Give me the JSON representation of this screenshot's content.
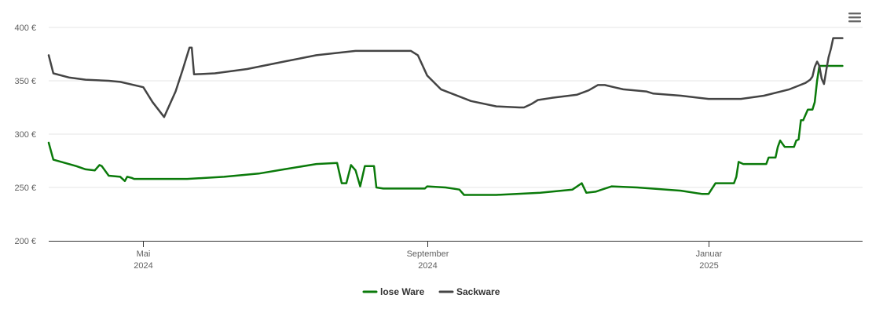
{
  "chart_data": {
    "type": "line",
    "title": "",
    "xlabel": "",
    "ylabel": "",
    "ylim": [
      200,
      400
    ],
    "y_ticks": [
      {
        "value": 200,
        "label": "200 €"
      },
      {
        "value": 250,
        "label": "250 €"
      },
      {
        "value": 300,
        "label": "300 €"
      },
      {
        "value": 350,
        "label": "350 €"
      },
      {
        "value": 400,
        "label": "400 €"
      }
    ],
    "xlim": [
      "2024-03-21",
      "2025-02-18"
    ],
    "x_ticks": [
      {
        "date": "2024-05-01",
        "month": "Mai",
        "year": "2024"
      },
      {
        "date": "2024-09-01",
        "month": "September",
        "year": "2024"
      },
      {
        "date": "2025-01-01",
        "month": "Januar",
        "year": "2025"
      }
    ],
    "grid": true,
    "legend_position": "bottom-center",
    "series": [
      {
        "name": "lose Ware",
        "color": "#0a7a0a",
        "points": [
          [
            "2024-03-21",
            292
          ],
          [
            "2024-03-23",
            276
          ],
          [
            "2024-03-28",
            273
          ],
          [
            "2024-04-02",
            270
          ],
          [
            "2024-04-06",
            267
          ],
          [
            "2024-04-10",
            266
          ],
          [
            "2024-04-12",
            271
          ],
          [
            "2024-04-13",
            270
          ],
          [
            "2024-04-16",
            261
          ],
          [
            "2024-04-21",
            260
          ],
          [
            "2024-04-23",
            256
          ],
          [
            "2024-04-24",
            260
          ],
          [
            "2024-04-26",
            259
          ],
          [
            "2024-04-27",
            258
          ],
          [
            "2024-05-20",
            258
          ],
          [
            "2024-06-05",
            260
          ],
          [
            "2024-06-20",
            263
          ],
          [
            "2024-07-01",
            267
          ],
          [
            "2024-07-15",
            272
          ],
          [
            "2024-07-24",
            273
          ],
          [
            "2024-07-26",
            254
          ],
          [
            "2024-07-28",
            254
          ],
          [
            "2024-07-30",
            271
          ],
          [
            "2024-08-01",
            266
          ],
          [
            "2024-08-03",
            251
          ],
          [
            "2024-08-05",
            270
          ],
          [
            "2024-08-09",
            270
          ],
          [
            "2024-08-10",
            250
          ],
          [
            "2024-08-13",
            249
          ],
          [
            "2024-08-31",
            249
          ],
          [
            "2024-09-01",
            251
          ],
          [
            "2024-09-09",
            250
          ],
          [
            "2024-09-15",
            248
          ],
          [
            "2024-09-17",
            243
          ],
          [
            "2024-10-01",
            243
          ],
          [
            "2024-10-20",
            245
          ],
          [
            "2024-11-03",
            248
          ],
          [
            "2024-11-07",
            254
          ],
          [
            "2024-11-09",
            245
          ],
          [
            "2024-11-13",
            246
          ],
          [
            "2024-11-20",
            251
          ],
          [
            "2024-12-01",
            250
          ],
          [
            "2024-12-20",
            247
          ],
          [
            "2024-12-29",
            244
          ],
          [
            "2025-01-01",
            244
          ],
          [
            "2025-01-04",
            254
          ],
          [
            "2025-01-09",
            254
          ],
          [
            "2025-01-12",
            254
          ],
          [
            "2025-01-13",
            260
          ],
          [
            "2025-01-14",
            274
          ],
          [
            "2025-01-16",
            272
          ],
          [
            "2025-01-26",
            272
          ],
          [
            "2025-01-27",
            278
          ],
          [
            "2025-01-30",
            278
          ],
          [
            "2025-01-31",
            288
          ],
          [
            "2025-02-01",
            294
          ],
          [
            "2025-02-03",
            288
          ],
          [
            "2025-02-07",
            288
          ],
          [
            "2025-02-08",
            294
          ],
          [
            "2025-02-09",
            295
          ],
          [
            "2025-02-10",
            313
          ],
          [
            "2025-02-11",
            313
          ],
          [
            "2025-02-13",
            323
          ],
          [
            "2025-02-15",
            323
          ],
          [
            "2025-02-16",
            330
          ],
          [
            "2025-02-17",
            350
          ],
          [
            "2025-02-18",
            364
          ],
          [
            "2025-02-19",
            364
          ],
          [
            "2025-02-28",
            364
          ]
        ]
      },
      {
        "name": "Sackware",
        "color": "#444444",
        "points": [
          [
            "2024-03-21",
            374
          ],
          [
            "2024-03-23",
            357
          ],
          [
            "2024-03-30",
            353
          ],
          [
            "2024-04-06",
            351
          ],
          [
            "2024-04-16",
            350
          ],
          [
            "2024-04-21",
            349
          ],
          [
            "2024-05-01",
            344
          ],
          [
            "2024-05-05",
            330
          ],
          [
            "2024-05-10",
            316
          ],
          [
            "2024-05-15",
            340
          ],
          [
            "2024-05-18",
            360
          ],
          [
            "2024-05-21",
            381
          ],
          [
            "2024-05-22",
            381
          ],
          [
            "2024-05-23",
            356
          ],
          [
            "2024-06-01",
            357
          ],
          [
            "2024-06-15",
            361
          ],
          [
            "2024-07-01",
            368
          ],
          [
            "2024-07-15",
            374
          ],
          [
            "2024-08-01",
            378
          ],
          [
            "2024-08-25",
            378
          ],
          [
            "2024-08-28",
            374
          ],
          [
            "2024-09-01",
            355
          ],
          [
            "2024-09-07",
            342
          ],
          [
            "2024-09-20",
            331
          ],
          [
            "2024-10-01",
            326
          ],
          [
            "2024-10-11",
            325
          ],
          [
            "2024-10-13",
            325
          ],
          [
            "2024-10-16",
            328
          ],
          [
            "2024-10-19",
            332
          ],
          [
            "2024-10-25",
            334
          ],
          [
            "2024-11-05",
            337
          ],
          [
            "2024-11-10",
            341
          ],
          [
            "2024-11-14",
            346
          ],
          [
            "2024-11-17",
            346
          ],
          [
            "2024-11-21",
            344
          ],
          [
            "2024-11-25",
            342
          ],
          [
            "2024-12-05",
            340
          ],
          [
            "2024-12-08",
            338
          ],
          [
            "2024-12-20",
            336
          ],
          [
            "2025-01-01",
            333
          ],
          [
            "2025-01-15",
            333
          ],
          [
            "2025-01-25",
            336
          ],
          [
            "2025-02-05",
            342
          ],
          [
            "2025-02-12",
            348
          ],
          [
            "2025-02-14",
            351
          ],
          [
            "2025-02-15",
            354
          ],
          [
            "2025-02-16",
            363
          ],
          [
            "2025-02-17",
            368
          ],
          [
            "2025-02-18",
            364
          ],
          [
            "2025-02-19",
            352
          ],
          [
            "2025-02-20",
            347
          ],
          [
            "2025-02-21",
            360
          ],
          [
            "2025-02-22",
            372
          ],
          [
            "2025-02-23",
            380
          ],
          [
            "2025-02-24",
            390
          ],
          [
            "2025-02-28",
            390
          ]
        ]
      }
    ]
  },
  "menu": {
    "icon": "hamburger-menu-icon"
  }
}
